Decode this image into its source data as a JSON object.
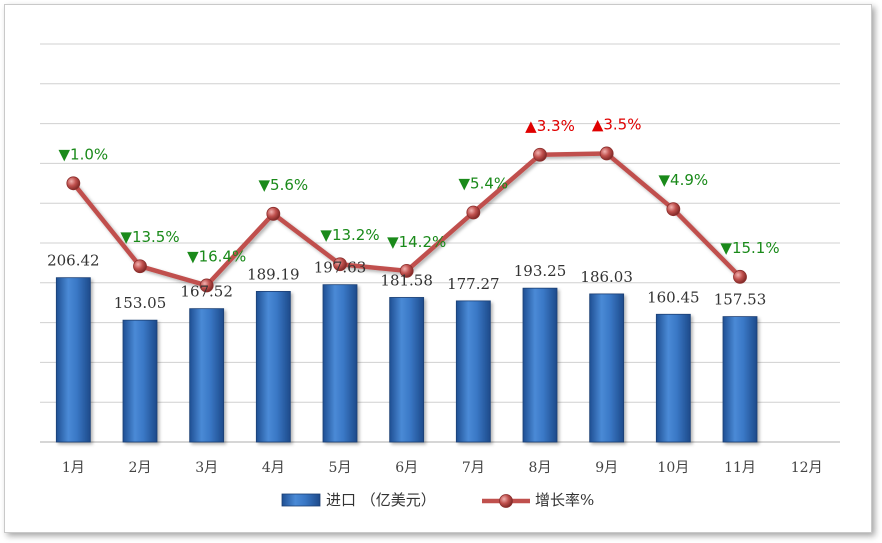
{
  "chart_data": {
    "type": "bar",
    "categories": [
      "1月",
      "2月",
      "3月",
      "4月",
      "5月",
      "6月",
      "7月",
      "8月",
      "9月",
      "10月",
      "11月",
      "12月"
    ],
    "series": [
      {
        "name": "进口 （亿美元）",
        "type": "bar",
        "values": [
          206.42,
          153.05,
          167.52,
          189.19,
          197.63,
          181.58,
          177.27,
          193.25,
          186.03,
          160.45,
          157.53,
          null
        ]
      },
      {
        "name": "增长率%",
        "type": "line",
        "values": [
          -1.0,
          -13.5,
          -16.4,
          -5.6,
          -13.2,
          -14.2,
          -5.4,
          3.3,
          3.5,
          -4.9,
          -15.1,
          null
        ]
      }
    ],
    "growth_labels": [
      "▼1.0%",
      "▼13.5%",
      "▼16.4%",
      "▼5.6%",
      "▼13.2%",
      "▼14.2%",
      "▼5.4%",
      "▲3.3%",
      "▲3.5%",
      "▼4.9%",
      "▼15.1%",
      ""
    ],
    "colors": {
      "bar": "#2e6fc4",
      "line": "#c0504d",
      "down": "#1a8a1a",
      "up": "#e00000",
      "grid": "#d0d0d0"
    },
    "grid": true,
    "legend": "bottom"
  }
}
